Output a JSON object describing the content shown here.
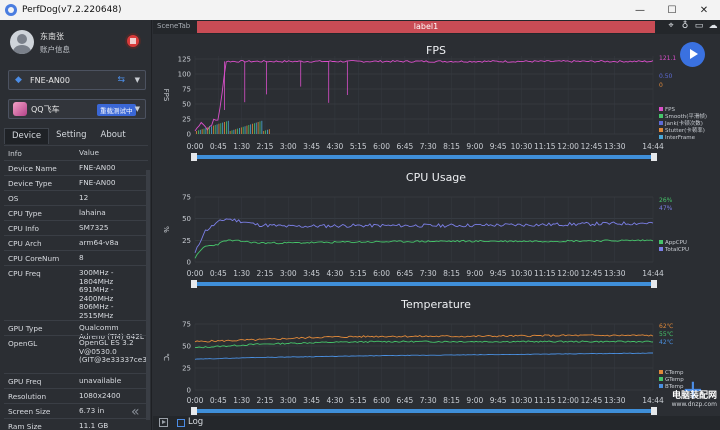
{
  "window": {
    "title": "PerfDog(v7.2.220648)",
    "min": "—",
    "max": "☐",
    "close": "✕"
  },
  "user": {
    "name": "东南张",
    "info": "账户信息"
  },
  "device": {
    "name": "FNE-AN00"
  },
  "app": {
    "name": "QQ飞车",
    "tag": "重载测试中"
  },
  "tabs": [
    "Device",
    "Setting",
    "About"
  ],
  "table": {
    "header": {
      "k": "Info",
      "v": "Value"
    },
    "rows": [
      {
        "k": "Device Name",
        "v": "FNE-AN00"
      },
      {
        "k": "Device Type",
        "v": "FNE-AN00"
      },
      {
        "k": "OS",
        "v": "12"
      },
      {
        "k": "CPU Type",
        "v": "lahaina"
      },
      {
        "k": "CPU Info",
        "v": "SM7325"
      },
      {
        "k": "CPU Arch",
        "v": "arm64-v8a"
      },
      {
        "k": "CPU CoreNum",
        "v": "8"
      },
      {
        "k": "CPU Freq",
        "v": "300MHz -\n1804MHz\n691MHz -\n2400MHz\n806MHz -\n2515MHz"
      },
      {
        "k": "GPU Type",
        "v": "Qualcomm\nAdreno (TM) 642L"
      },
      {
        "k": "OpenGL",
        "v": "OpenGL ES 3.2\nV@0530.0\n(GIT@3e33337ce3"
      },
      {
        "k": "GPU Freq",
        "v": "unavailable"
      },
      {
        "k": "Resolution",
        "v": "1080x2400"
      },
      {
        "k": "Screen Size",
        "v": "6.73 in"
      },
      {
        "k": "Ram Size",
        "v": "11.1 GB"
      }
    ]
  },
  "toolbar": {
    "scene_tab": "SceneTab",
    "label": "label1"
  },
  "bottom": {
    "log_label": "Log"
  },
  "watermark": {
    "line1": "电脑装配网",
    "line2": "www.dnzp.com"
  },
  "colors": {
    "accent": "#3a71e0",
    "fps": "#d94fc9",
    "smooth": "#46c46a",
    "jank": "#5d6bd6",
    "stutter": "#e0893a",
    "interframe": "#4aa8d8",
    "appcpu": "#46c46a",
    "totalcpu": "#7b7fe6",
    "ctemp": "#e0893a",
    "gtemp": "#46c46a",
    "btemp": "#4a8fe0",
    "label_bar": "#c94c55"
  },
  "x_ticks": [
    "0:00",
    "0:45",
    "1:30",
    "2:15",
    "3:00",
    "3:45",
    "4:30",
    "5:15",
    "6:00",
    "6:45",
    "7:30",
    "8:15",
    "9:00",
    "9:45",
    "10:30",
    "11:15",
    "12:00",
    "12:45",
    "13:30",
    "14:44"
  ],
  "chart_data": [
    {
      "type": "line",
      "title": "FPS",
      "ylabel": "FPS",
      "ylim": [
        0,
        130
      ],
      "yticks": [
        "0",
        "25",
        "50",
        "75",
        "100",
        "125"
      ],
      "series": [
        {
          "name": "FPS",
          "current": "121.1"
        },
        {
          "name": "Smooth(平滑帧)",
          "current": ""
        },
        {
          "name": "Jank(卡顿次数)",
          "current": "0.50"
        },
        {
          "name": "Stutter(卡顿率)",
          "current": "0"
        },
        {
          "name": "InterFrame",
          "current": ""
        }
      ],
      "fps_profile": {
        "x_min": [
          0,
          0.2,
          0.4,
          0.55,
          0.6,
          0.75,
          1.0,
          1.3,
          1.8,
          2.5,
          3.5,
          4.5,
          4.8,
          5.0,
          14.73
        ],
        "y": [
          5,
          20,
          8,
          15,
          25,
          22,
          121,
          121,
          121,
          121,
          121,
          121,
          121,
          121,
          121
        ]
      }
    },
    {
      "type": "line",
      "title": "CPU Usage",
      "ylabel": "%",
      "ylim": [
        0,
        75
      ],
      "yticks": [
        "0",
        "25",
        "50",
        "75"
      ],
      "series": [
        {
          "name": "AppCPU",
          "current": "26%"
        },
        {
          "name": "TotalCPU",
          "current": "47%"
        }
      ],
      "profiles": {
        "x_min": [
          0,
          0.3,
          0.7,
          1.0,
          1.5,
          2.0,
          3.0,
          5.0,
          8.0,
          11.0,
          14.73
        ],
        "AppCPU": [
          5,
          18,
          20,
          25,
          24,
          22,
          22,
          23,
          24,
          24,
          25
        ],
        "TotalCPU": [
          10,
          35,
          45,
          50,
          47,
          43,
          41,
          42,
          42,
          43,
          45
        ]
      }
    },
    {
      "type": "line",
      "title": "Temperature",
      "ylabel": "℃",
      "ylim": [
        0,
        75
      ],
      "yticks": [
        "0",
        "25",
        "50",
        "75"
      ],
      "series": [
        {
          "name": "CTemp",
          "current": "62℃"
        },
        {
          "name": "GTemp",
          "current": "55℃"
        },
        {
          "name": "BTemp",
          "current": "42℃"
        }
      ],
      "profiles": {
        "x_min": [
          0,
          1.0,
          2.0,
          4.0,
          6.0,
          9.0,
          12.0,
          14.73
        ],
        "CTemp": [
          55,
          56,
          57,
          60,
          61,
          61,
          62,
          62
        ],
        "GTemp": [
          48,
          50,
          52,
          54,
          55,
          55,
          55,
          55
        ],
        "BTemp": [
          35,
          36,
          37,
          38,
          39,
          40,
          41,
          42
        ]
      }
    }
  ]
}
